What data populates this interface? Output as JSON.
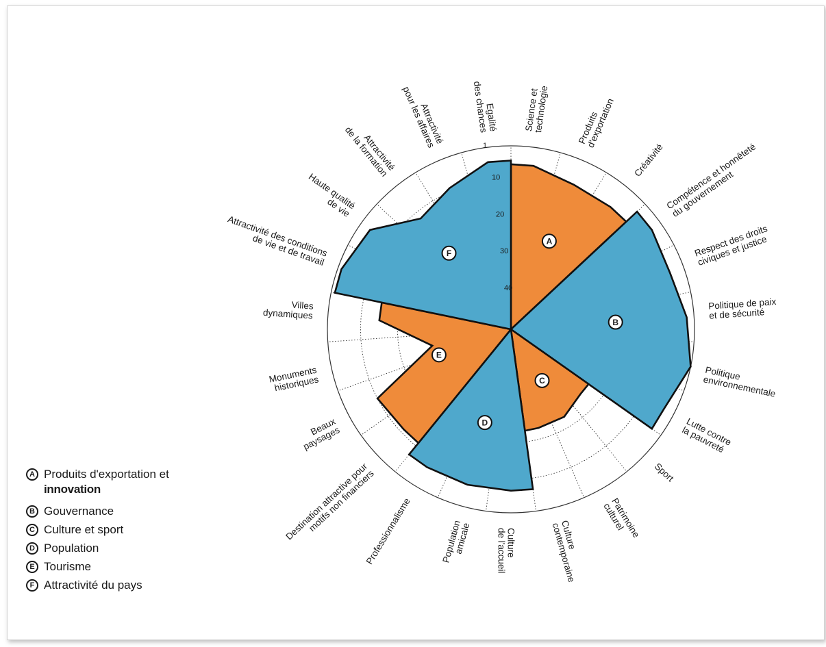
{
  "chart_data": {
    "type": "radar-rose",
    "scale_ticks": [
      "1",
      "10",
      "20",
      "30",
      "40"
    ],
    "axes": [
      {
        "label": [
          "Science et",
          "technologie"
        ],
        "group": "A",
        "rank": 6
      },
      {
        "label": [
          "Produits",
          "d'exportation"
        ],
        "group": "A",
        "rank": 8
      },
      {
        "label": [
          "Créativité"
        ],
        "group": "A",
        "rank": 8
      },
      {
        "label": [
          "Compétence et honnêteté",
          "du gouvernement"
        ],
        "group": "B",
        "rank": 4
      },
      {
        "label": [
          "Respect des droits",
          "civiques et justice"
        ],
        "group": "B",
        "rank": 5
      },
      {
        "label": [
          "Politique de paix",
          "et de sécurité"
        ],
        "group": "B",
        "rank": 3
      },
      {
        "label": [
          "Politique",
          "environnementale"
        ],
        "group": "B",
        "rank": 1
      },
      {
        "label": [
          "Lutte contre",
          "la pauvreté"
        ],
        "group": "B",
        "rank": 4
      },
      {
        "label": [
          "Sport"
        ],
        "group": "C",
        "rank": 25
      },
      {
        "label": [
          "Patrimoine",
          "culturel"
        ],
        "group": "C",
        "rank": 23
      },
      {
        "label": [
          "Culture",
          "contemporaine"
        ],
        "group": "C",
        "rank": 23
      },
      {
        "label": [
          "Culture",
          "de l'accueil"
        ],
        "group": "D",
        "rank": 7
      },
      {
        "label": [
          "Population",
          "amicale"
        ],
        "group": "D",
        "rank": 7
      },
      {
        "label": [
          "Professionnalisme"
        ],
        "group": "D",
        "rank": 7
      },
      {
        "label": [
          "Destination attractive pour",
          "motifs non financiers"
        ],
        "group": "E",
        "rank": 11
      },
      {
        "label": [
          "Beaux",
          "paysages"
        ],
        "group": "E",
        "rank": 10
      },
      {
        "label": [
          "Monuments",
          "historiques"
        ],
        "group": "E",
        "rank": 29
      },
      {
        "label": [
          "Villes",
          "dynamiques"
        ],
        "group": "E",
        "rank": 15
      },
      {
        "label": [
          "Attractivité des conditions",
          "de vie et de travail"
        ],
        "group": "F",
        "rank": 2
      },
      {
        "label": [
          "Haute qualité",
          "de vie"
        ],
        "group": "F",
        "rank": 4
      },
      {
        "label": [
          "Attractivité",
          "de la formation"
        ],
        "group": "F",
        "rank": 12
      },
      {
        "label": [
          "Attractivité",
          "pour les affaires"
        ],
        "group": "F",
        "rank": 9
      },
      {
        "label": [
          "Egalité",
          "des chances"
        ],
        "group": "F",
        "rank": 5
      }
    ],
    "groups": [
      {
        "id": "A",
        "color": "#ef8b3a"
      },
      {
        "id": "B",
        "color": "#4fa8cc"
      },
      {
        "id": "C",
        "color": "#ef8b3a"
      },
      {
        "id": "D",
        "color": "#4fa8cc"
      },
      {
        "id": "E",
        "color": "#ef8b3a"
      },
      {
        "id": "F",
        "color": "#4fa8cc"
      }
    ],
    "legend": [
      {
        "letter": "A",
        "text": "Produits d'exportation et",
        "text_bold": "innovation"
      },
      {
        "letter": "B",
        "text": "Gouvernance"
      },
      {
        "letter": "C",
        "text": "Culture et sport"
      },
      {
        "letter": "D",
        "text": "Population"
      },
      {
        "letter": "E",
        "text": "Tourisme"
      },
      {
        "letter": "F",
        "text": "Attractivité du pays"
      }
    ]
  }
}
